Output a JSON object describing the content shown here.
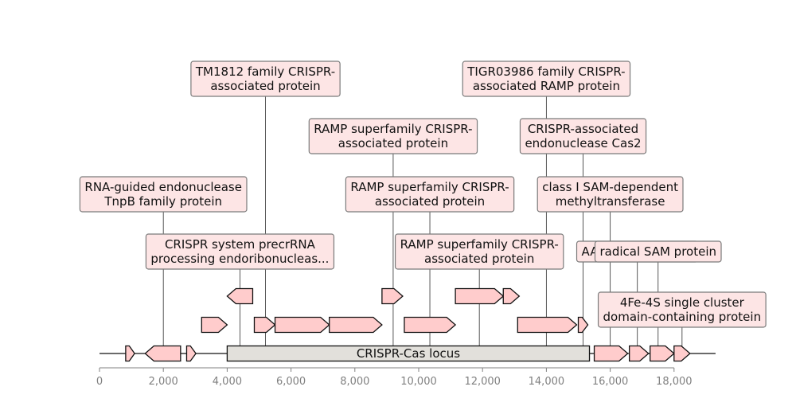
{
  "map": {
    "axis": {
      "start": 0,
      "end": 19300,
      "ticks": [
        0,
        2000,
        4000,
        6000,
        8000,
        10000,
        12000,
        14000,
        16000,
        18000
      ],
      "tick_labels": [
        "0",
        "2,000",
        "4,000",
        "6,000",
        "8,000",
        "10,000",
        "12,000",
        "14,000",
        "16,000",
        "18,000"
      ]
    },
    "locus": {
      "label": "CRISPR-Cas locus",
      "start": 4000,
      "end": 15350,
      "color": "#e2e0db"
    },
    "gene_color": "#ffcccc",
    "genes": [
      {
        "start": 820,
        "end": 1100,
        "strand": 1,
        "level": 0
      },
      {
        "start": 1430,
        "end": 2540,
        "strand": -1,
        "level": 0
      },
      {
        "start": 2730,
        "end": 3020,
        "strand": 1,
        "level": 0
      },
      {
        "start": 3200,
        "end": 4000,
        "strand": 1,
        "level": 1
      },
      {
        "start": 4000,
        "end": 4800,
        "strand": -1,
        "level": 2
      },
      {
        "start": 4850,
        "end": 5500,
        "strand": 1,
        "level": 1
      },
      {
        "start": 5500,
        "end": 7200,
        "strand": 1,
        "level": 1
      },
      {
        "start": 7200,
        "end": 8850,
        "strand": 1,
        "level": 1
      },
      {
        "start": 8850,
        "end": 9500,
        "strand": 1,
        "level": 2
      },
      {
        "start": 9550,
        "end": 11150,
        "strand": 1,
        "level": 1
      },
      {
        "start": 11150,
        "end": 12650,
        "strand": 1,
        "level": 2
      },
      {
        "start": 12650,
        "end": 13150,
        "strand": 1,
        "level": 2
      },
      {
        "start": 13100,
        "end": 14950,
        "strand": 1,
        "level": 1
      },
      {
        "start": 15000,
        "end": 15300,
        "strand": 1,
        "level": 1
      },
      {
        "start": 15500,
        "end": 16550,
        "strand": 1,
        "level": 0
      },
      {
        "start": 16600,
        "end": 17200,
        "strand": 1,
        "level": 0
      },
      {
        "start": 17250,
        "end": 18000,
        "strand": 1,
        "level": 0
      },
      {
        "start": 18000,
        "end": 18500,
        "strand": 1,
        "level": 0
      }
    ],
    "annotations": [
      {
        "lines": [
          "RNA-guided endonuclease",
          "TnpB family protein"
        ],
        "position": 2000,
        "level": 2
      },
      {
        "lines": [
          "CRISPR system precrRNA",
          "processing endoribonucleas..."
        ],
        "position": 4400,
        "level": 1
      },
      {
        "lines": [
          "TM1812 family CRISPR-",
          "associated protein"
        ],
        "position": 5200,
        "level": 4
      },
      {
        "lines": [
          "RAMP superfamily CRISPR-",
          "associated protein"
        ],
        "position": 9200,
        "level": 3
      },
      {
        "lines": [
          "RAMP superfamily CRISPR-",
          "associated protein"
        ],
        "position": 10350,
        "level": 2
      },
      {
        "lines": [
          "RAMP superfamily CRISPR-",
          "associated protein"
        ],
        "position": 11900,
        "level": 1
      },
      {
        "lines": [
          "TIGR03986 family CRISPR-",
          "associated RAMP protein"
        ],
        "position": 14000,
        "level": 4
      },
      {
        "lines": [
          "CRISPR-associated",
          "endonuclease Cas2"
        ],
        "position": 15150,
        "level": 3
      },
      {
        "lines": [
          "class I SAM-dependent",
          "methyltransferase"
        ],
        "position": 16000,
        "level": 2
      },
      {
        "lines": [
          "AAA family ATPase"
        ],
        "position": 16850,
        "level": 1
      },
      {
        "lines": [
          "radical SAM protein"
        ],
        "position": 17500,
        "level": 1
      },
      {
        "lines": [
          "4Fe-4S single cluster",
          "domain-containing protein"
        ],
        "position": 18250,
        "level": 0
      }
    ]
  }
}
